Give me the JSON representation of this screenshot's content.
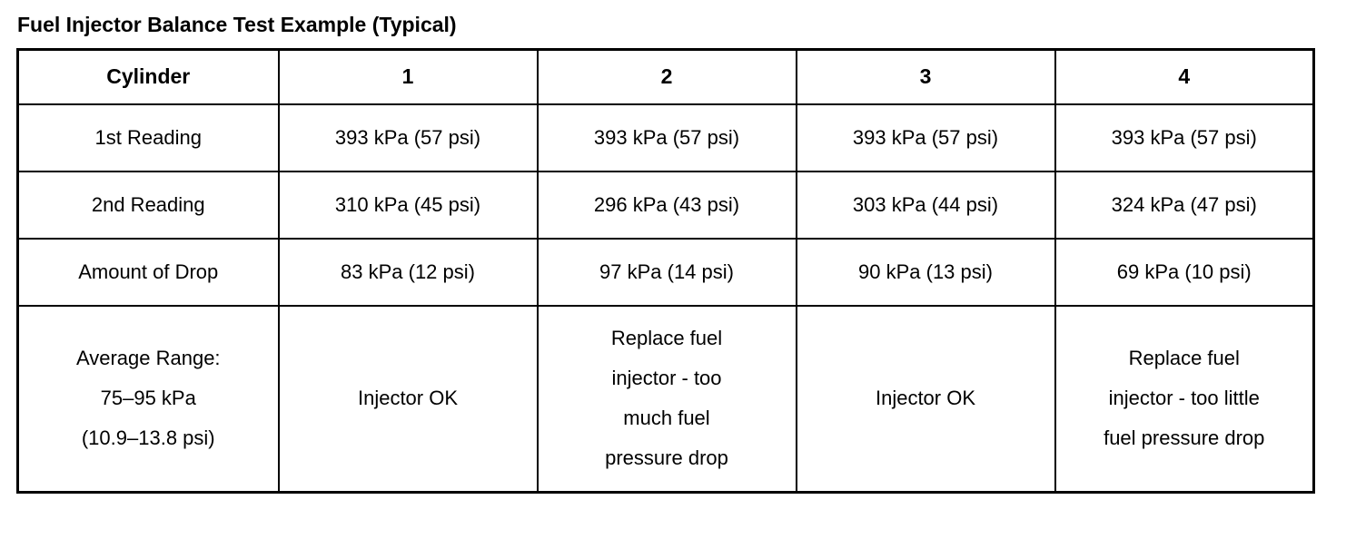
{
  "title": "Fuel Injector Balance Test Example (Typical)",
  "table": {
    "header": [
      "Cylinder",
      "1",
      "2",
      "3",
      "4"
    ],
    "rows": [
      {
        "label": "1st Reading",
        "cells": [
          "393 kPa (57 psi)",
          "393 kPa (57 psi)",
          "393 kPa (57 psi)",
          "393 kPa (57 psi)"
        ]
      },
      {
        "label": "2nd Reading",
        "cells": [
          "310 kPa (45 psi)",
          "296 kPa (43 psi)",
          "303 kPa (44 psi)",
          "324 kPa (47 psi)"
        ]
      },
      {
        "label": "Amount of Drop",
        "cells": [
          "83 kPa (12 psi)",
          "97 kPa (14 psi)",
          "90 kPa (13 psi)",
          "69 kPa (10 psi)"
        ]
      },
      {
        "label": "Average Range:\n75–95 kPa\n(10.9–13.8 psi)",
        "cells": [
          "Injector OK",
          "Replace fuel\ninjector - too\nmuch fuel\npressure drop",
          "Injector OK",
          "Replace fuel\ninjector - too little\nfuel pressure drop"
        ]
      }
    ]
  }
}
